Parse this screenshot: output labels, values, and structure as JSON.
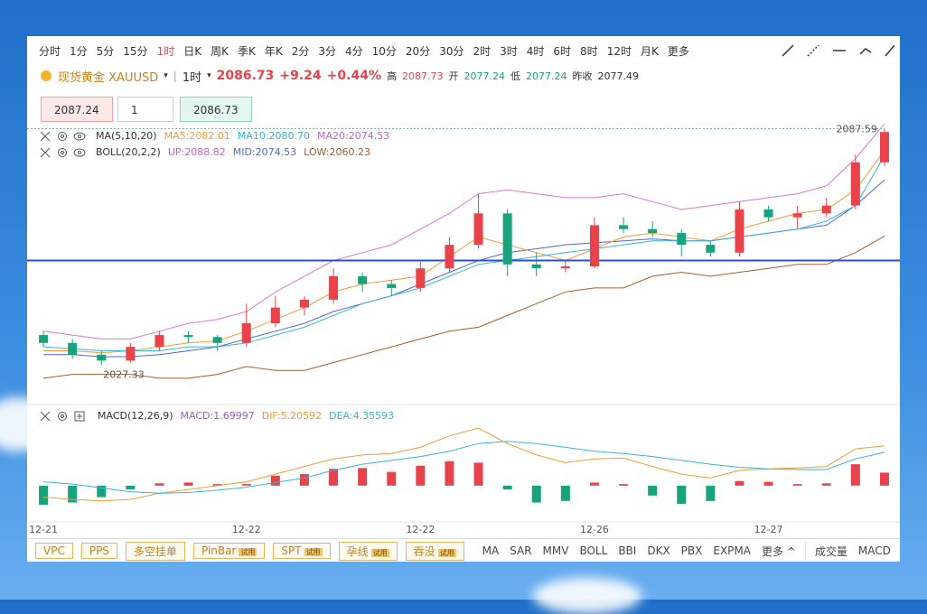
{
  "toolbar": {
    "periods": [
      "分时",
      "1分",
      "5分",
      "15分",
      "1时",
      "日K",
      "周K",
      "季K",
      "年K",
      "2分",
      "3分",
      "4分",
      "10分",
      "20分",
      "30分",
      "2时",
      "3时",
      "4时",
      "6时",
      "8时",
      "12时",
      "月K"
    ],
    "active": "1时",
    "more": "更多"
  },
  "symbol": {
    "name": "现货黄金 XAUUSD",
    "period": "1时",
    "price": "2086.73",
    "change": "+9.24",
    "change_pct": "+0.44%",
    "high_label": "高",
    "high": "2087.73",
    "open_label": "开",
    "open": "2077.24",
    "low_label": "低",
    "low": "2077.24",
    "prev_label": "昨收",
    "prev": "2077.49"
  },
  "order": {
    "sell": "2087.24",
    "qty": "1",
    "buy": "2086.73"
  },
  "chart_data": {
    "type": "candlestick",
    "categories": [
      "12-21",
      null,
      null,
      null,
      null,
      null,
      null,
      "12-22",
      null,
      null,
      null,
      null,
      null,
      "12-22",
      null,
      null,
      null,
      null,
      null,
      "12-26",
      null,
      null,
      null,
      null,
      null,
      "12-27",
      null,
      null,
      null,
      null
    ],
    "open": [
      2035,
      2033,
      2030,
      2028.5,
      2032,
      2035,
      2034.5,
      2033,
      2038,
      2042,
      2044,
      2050,
      2048,
      2047,
      2052,
      2058,
      2066,
      2053,
      2052,
      2052.5,
      2063,
      2062,
      2061,
      2058,
      2056,
      2067,
      2065,
      2066,
      2068,
      2079
    ],
    "high": [
      2036,
      2034,
      2031,
      2033,
      2036,
      2036,
      2035,
      2043,
      2045,
      2045,
      2052,
      2051,
      2049,
      2054,
      2060,
      2071,
      2067,
      2056,
      2054,
      2065,
      2065,
      2064,
      2062,
      2059,
      2069,
      2068,
      2068,
      2070,
      2081,
      2087.59
    ],
    "low": [
      2032,
      2029,
      2027.33,
      2028,
      2031,
      2033,
      2031,
      2032,
      2037,
      2040,
      2043,
      2046,
      2045,
      2046,
      2051,
      2057,
      2050,
      2050,
      2051,
      2052,
      2061,
      2060,
      2055,
      2055,
      2055,
      2064,
      2062,
      2065,
      2067,
      2078
    ],
    "close": [
      2033,
      2030,
      2028.5,
      2032,
      2035,
      2034.5,
      2033,
      2038,
      2042,
      2044,
      2050,
      2048,
      2047,
      2052,
      2058,
      2066,
      2053,
      2052,
      2052.5,
      2063,
      2062,
      2061,
      2058,
      2056,
      2067,
      2065,
      2066,
      2068,
      2079,
      2086.73
    ],
    "up_color": "#e8434b",
    "down_color": "#17a37e",
    "ylim": [
      2018,
      2090
    ],
    "hline": 2054,
    "max": 2087.59,
    "min": 2027.33,
    "lines": [
      {
        "color": "#d77bd0",
        "values": [
          2036,
          2035,
          2034,
          2034,
          2036,
          2038,
          2039,
          2041,
          2046,
          2050,
          2054,
          2056,
          2058,
          2062,
          2066,
          2071,
          2072,
          2071,
          2070,
          2070,
          2071,
          2069,
          2067,
          2068,
          2069,
          2070,
          2071,
          2073,
          2080,
          2088.82
        ]
      },
      {
        "color": "#5565d8",
        "values": [
          2030,
          2030,
          2029.5,
          2029.5,
          2030,
          2031,
          2032,
          2034,
          2036,
          2038,
          2041,
          2043,
          2045,
          2048,
          2051,
          2054,
          2056,
          2057,
          2058,
          2058.5,
          2059,
          2059.5,
          2059,
          2059,
          2060,
          2061,
          2062,
          2063,
          2068,
          2074.53
        ]
      },
      {
        "color": "#a0602a",
        "values": [
          2024,
          2025,
          2025,
          2025,
          2024,
          2024,
          2025,
          2027,
          2026,
          2026,
          2028,
          2030,
          2032,
          2034,
          2036,
          2037,
          2040,
          2043,
          2046,
          2047,
          2047,
          2050,
          2051,
          2050,
          2051,
          2052,
          2053,
          2053,
          2056,
          2060.23
        ]
      },
      {
        "color": "#f39c33",
        "values": [
          2031,
          2031,
          2030.5,
          2031,
          2032,
          2033,
          2033.5,
          2036,
          2039,
          2042,
          2046,
          2048,
          2049,
          2050,
          2055,
          2060,
          2058,
          2056,
          2054,
          2057,
          2060,
          2061,
          2060,
          2059,
          2062,
          2064,
          2066,
          2067,
          2072,
          2082.01
        ]
      },
      {
        "color": "#35b6d4",
        "values": [
          2032,
          2031.5,
          2031,
          2031,
          2031,
          2032,
          2032,
          2033,
          2035,
          2037,
          2040,
          2043,
          2045,
          2047,
          2050,
          2053,
          2054,
          2055,
          2056,
          2057,
          2058,
          2059,
          2059,
          2059,
          2060,
          2061,
          2062,
          2064,
          2068,
          2080.7
        ]
      }
    ],
    "legends": [
      {
        "label": "MA(5,10,20)",
        "items": [
          {
            "text": "MA5:2082.01",
            "color": "#f39c33"
          },
          {
            "text": "MA10:2080.70",
            "color": "#35b6d4"
          },
          {
            "text": "MA20:2074.53",
            "color": "#b36ad0"
          }
        ]
      },
      {
        "label": "BOLL(20,2,2)",
        "items": [
          {
            "text": "UP:2088.82",
            "color": "#d45fc9"
          },
          {
            "text": "MID:2074.53",
            "color": "#5565d8"
          },
          {
            "text": "LOW:2060.23",
            "color": "#a0602a"
          }
        ]
      }
    ],
    "macd": {
      "label": "MACD(12,26,9)",
      "items": [
        {
          "text": "MACD:1.69997",
          "color": "#9b59d0"
        },
        {
          "text": "DIF:5.20592",
          "color": "#f39c33"
        },
        {
          "text": "DEA:4.35593",
          "color": "#35b6d4"
        }
      ],
      "ylim": [
        -4.5,
        8
      ],
      "hist": [
        -2.5,
        -2.2,
        -1.5,
        -0.5,
        0.3,
        0.4,
        0.2,
        0.2,
        1.3,
        1.5,
        2.2,
        2.3,
        1.8,
        2.6,
        3.2,
        3.0,
        -0.5,
        -2.2,
        -2.0,
        0.4,
        0.2,
        -1.3,
        -2.4,
        -2.0,
        0.6,
        0.5,
        0.2,
        0.3,
        2.8,
        1.7
      ],
      "dif": {
        "color": "#f39c33",
        "values": [
          -1.5,
          -1.8,
          -2.0,
          -1.8,
          -1.0,
          -0.5,
          0,
          0.5,
          1.5,
          2.5,
          3.5,
          4,
          4.2,
          5,
          6.5,
          7.5,
          5.5,
          4,
          3,
          3.5,
          3.6,
          2.5,
          1.5,
          1,
          2,
          2.2,
          2.3,
          2.5,
          4.8,
          5.20592
        ]
      },
      "dea": {
        "color": "#35b6d4",
        "values": [
          0.5,
          0.2,
          -0.3,
          -0.8,
          -1.0,
          -0.9,
          -0.6,
          -0.2,
          0.4,
          1,
          2,
          2.8,
          3.3,
          3.8,
          4.5,
          5.5,
          5.8,
          5.5,
          5,
          4.5,
          4.2,
          3.8,
          3.3,
          2.8,
          2.4,
          2.2,
          2.1,
          2.1,
          3.5,
          4.35593
        ]
      }
    }
  },
  "bottom": {
    "tools": [
      {
        "text": "VPC"
      },
      {
        "text": "PPS"
      },
      {
        "text": "多空挂单"
      },
      {
        "text": "PinBar",
        "badge": "试用"
      },
      {
        "text": "SPT",
        "badge": "试用"
      },
      {
        "text": "孕线",
        "badge": "试用"
      },
      {
        "text": "吞没",
        "badge": "试用"
      }
    ],
    "indicators": [
      "MA",
      "SAR",
      "MMV",
      "BOLL",
      "BBI",
      "DKX",
      "PBX",
      "EXPMA",
      "更多 ^"
    ],
    "sub": [
      "成交量",
      "MACD"
    ]
  }
}
